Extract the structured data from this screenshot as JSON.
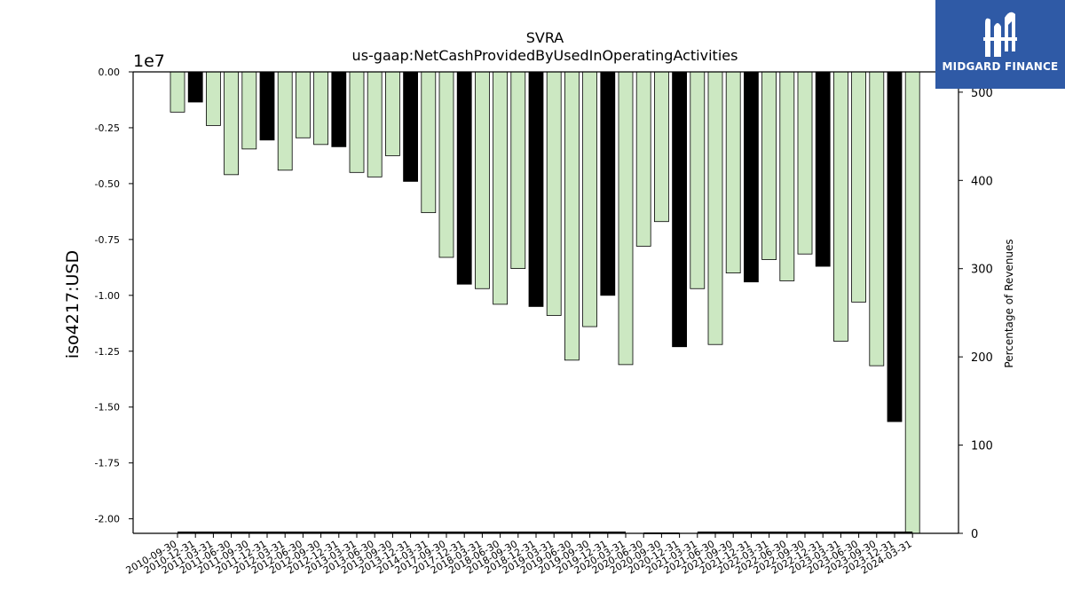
{
  "chart_data": {
    "type": "bar",
    "title": "SVRA",
    "subtitle": "us-gaap:NetCashProvidedByUsedInOperatingActivities",
    "ylabel": "iso4217:USD",
    "y_multiplier": "1e7",
    "ylim": [
      -2.065,
      0
    ],
    "yticks": [
      "0.00",
      "-0.25",
      "-0.50",
      "-0.75",
      "-1.00",
      "-1.25",
      "-1.50",
      "-1.75",
      "-2.00"
    ],
    "y2label": "Percentage of Revenues",
    "y2lim": [
      0,
      523
    ],
    "y2ticks": [
      "0",
      "100",
      "200",
      "300",
      "400",
      "500"
    ],
    "categories": [
      "2010-09-30",
      "2010-12-31",
      "2011-03-31",
      "2011-06-30",
      "2011-09-30",
      "2011-12-31",
      "2012-03-31",
      "2012-06-30",
      "2012-09-30",
      "2012-12-31",
      "2013-03-31",
      "2013-06-30",
      "2013-09-30",
      "2013-12-31",
      "2014-03-31",
      "2017-09-30",
      "2017-12-31",
      "2018-03-31",
      "2018-06-30",
      "2018-09-30",
      "2018-12-31",
      "2019-03-31",
      "2019-06-30",
      "2019-09-30",
      "2019-12-31",
      "2020-03-31",
      "2020-06-30",
      "2020-09-30",
      "2020-12-31",
      "2021-03-31",
      "2021-06-30",
      "2021-09-30",
      "2021-12-31",
      "2022-03-31",
      "2022-06-30",
      "2022-09-30",
      "2022-12-31",
      "2023-03-31",
      "2023-06-30",
      "2023-09-30",
      "2023-12-31",
      "2024-03-31"
    ],
    "values": [
      -0.18,
      -0.135,
      -0.24,
      -0.46,
      -0.345,
      -0.305,
      -0.44,
      -0.295,
      -0.325,
      -0.335,
      -0.45,
      -0.47,
      -0.375,
      -0.49,
      -0.63,
      -0.83,
      -0.95,
      -0.97,
      -1.04,
      -0.88,
      -1.05,
      -1.09,
      -1.29,
      -1.14,
      -1.0,
      -1.31,
      -0.78,
      -0.67,
      -1.23,
      -0.97,
      -1.22,
      -0.9,
      -0.94,
      -0.84,
      -0.935,
      -0.815,
      -0.87,
      -1.205,
      -1.03,
      -1.315,
      -1.565,
      -2.065
    ],
    "highlight": [
      false,
      true,
      false,
      false,
      false,
      true,
      false,
      false,
      false,
      true,
      false,
      false,
      false,
      true,
      false,
      false,
      true,
      false,
      false,
      false,
      true,
      false,
      false,
      false,
      true,
      false,
      false,
      false,
      true,
      false,
      false,
      false,
      true,
      false,
      false,
      false,
      true,
      false,
      false,
      false,
      true,
      false
    ],
    "revenue_pct": [
      1,
      1,
      1,
      1,
      1,
      1,
      1,
      1,
      1,
      1,
      1,
      1,
      1,
      1,
      1,
      1,
      1,
      1,
      1,
      1,
      1,
      1,
      1,
      1,
      1,
      1,
      0,
      0,
      0,
      1,
      1,
      1,
      1,
      1,
      1,
      1,
      1,
      1,
      1,
      1,
      1,
      1
    ],
    "colors": {
      "bar": "#cce8c2",
      "highlight": "#000000",
      "edge": "#000000",
      "line": "#000000"
    },
    "grid": false
  },
  "logo": {
    "text": "MIDGARD FINANCE",
    "color": "#2f5aa6"
  }
}
